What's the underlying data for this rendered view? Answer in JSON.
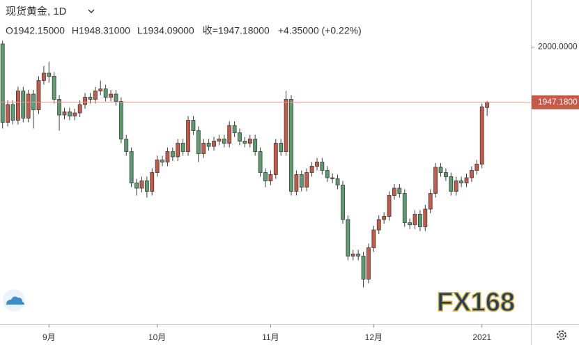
{
  "chart_data": {
    "type": "candlestick",
    "title": "现货黄金, 1D",
    "ohlc_legend": [
      "O1942.15000",
      "H1948.31000",
      "L1934.09000",
      "收=1947.18000",
      "+4.35000 (+0.22%)"
    ],
    "watermark": "FX168",
    "up_color": "#c65a46",
    "down_color": "#5a9e70",
    "ylim": [
      1735,
      2045
    ],
    "yticks": [
      {
        "value": 2000,
        "label": "2000.0000"
      }
    ],
    "last_price": {
      "value": 1947.18,
      "label": "1947.1800"
    },
    "xlim": [
      -0.5,
      102.5
    ],
    "xticks": [
      {
        "value": 9,
        "label": "9月"
      },
      {
        "value": 30,
        "label": "10月"
      },
      {
        "value": 52,
        "label": "11月"
      },
      {
        "value": 72,
        "label": "12月"
      },
      {
        "value": 93,
        "label": "2021"
      }
    ],
    "open": [
      2003,
      1928,
      1945,
      1930,
      1958,
      1932,
      1955,
      1940,
      1968,
      1975,
      1972,
      1950,
      1935,
      1938,
      1934,
      1937,
      1945,
      1952,
      1950,
      1958,
      1960,
      1952,
      1955,
      1948,
      1912,
      1900,
      1870,
      1865,
      1872,
      1862,
      1880,
      1892,
      1890,
      1900,
      1895,
      1908,
      1900,
      1930,
      1920,
      1898,
      1908,
      1905,
      1910,
      1912,
      1908,
      1925,
      1918,
      1910,
      1908,
      1912,
      1900,
      1880,
      1872,
      1878,
      1908,
      1900,
      1950,
      1862,
      1878,
      1866,
      1880,
      1886,
      1890,
      1882,
      1875,
      1874,
      1868,
      1835,
      1800,
      1802,
      1800,
      1778,
      1808,
      1825,
      1835,
      1838,
      1858,
      1865,
      1860,
      1832,
      1830,
      1840,
      1828,
      1845,
      1860,
      1885,
      1880,
      1876,
      1862,
      1872,
      1870,
      1875,
      1882,
      1888,
      1942.15
    ],
    "high": [
      2006,
      1949,
      1949,
      1962,
      1962,
      1959,
      1959,
      1972,
      1982,
      1986,
      1976,
      1954,
      1942,
      1942,
      1941,
      1949,
      1956,
      1956,
      1962,
      1968,
      1964,
      1959,
      1959,
      1952,
      1916,
      1904,
      1874,
      1876,
      1876,
      1884,
      1896,
      1896,
      1904,
      1904,
      1912,
      1912,
      1934,
      1934,
      1924,
      1912,
      1912,
      1914,
      1916,
      1916,
      1929,
      1929,
      1922,
      1914,
      1916,
      1916,
      1904,
      1884,
      1882,
      1912,
      1912,
      1958,
      1954,
      1882,
      1882,
      1884,
      1890,
      1894,
      1894,
      1886,
      1879,
      1878,
      1872,
      1839,
      1806,
      1806,
      1804,
      1812,
      1829,
      1839,
      1842,
      1862,
      1869,
      1869,
      1864,
      1836,
      1844,
      1844,
      1849,
      1864,
      1889,
      1889,
      1884,
      1880,
      1876,
      1876,
      1879,
      1886,
      1892,
      1946,
      1948.31
    ],
    "low": [
      1922,
      1924,
      1926,
      1926,
      1928,
      1928,
      1922,
      1936,
      1964,
      1966,
      1946,
      1920,
      1931,
      1930,
      1930,
      1933,
      1941,
      1946,
      1946,
      1954,
      1948,
      1948,
      1944,
      1908,
      1896,
      1866,
      1858,
      1861,
      1856,
      1858,
      1876,
      1886,
      1886,
      1891,
      1891,
      1896,
      1896,
      1916,
      1890,
      1894,
      1901,
      1901,
      1906,
      1904,
      1904,
      1914,
      1906,
      1904,
      1904,
      1896,
      1876,
      1866,
      1868,
      1874,
      1896,
      1896,
      1858,
      1858,
      1862,
      1862,
      1876,
      1882,
      1878,
      1871,
      1870,
      1864,
      1831,
      1796,
      1796,
      1796,
      1770,
      1774,
      1804,
      1821,
      1831,
      1834,
      1854,
      1856,
      1828,
      1826,
      1826,
      1824,
      1824,
      1841,
      1856,
      1876,
      1872,
      1858,
      1858,
      1866,
      1866,
      1871,
      1878,
      1884,
      1934.09
    ],
    "close": [
      1928,
      1945,
      1930,
      1958,
      1932,
      1955,
      1940,
      1968,
      1975,
      1972,
      1950,
      1935,
      1938,
      1934,
      1937,
      1945,
      1952,
      1950,
      1958,
      1960,
      1952,
      1955,
      1948,
      1912,
      1900,
      1870,
      1865,
      1872,
      1862,
      1880,
      1892,
      1890,
      1900,
      1895,
      1908,
      1900,
      1930,
      1920,
      1898,
      1908,
      1905,
      1910,
      1912,
      1908,
      1925,
      1918,
      1910,
      1908,
      1912,
      1900,
      1880,
      1872,
      1878,
      1908,
      1900,
      1950,
      1862,
      1878,
      1866,
      1880,
      1886,
      1890,
      1882,
      1875,
      1874,
      1868,
      1835,
      1800,
      1802,
      1800,
      1778,
      1808,
      1825,
      1835,
      1838,
      1858,
      1865,
      1860,
      1832,
      1830,
      1840,
      1828,
      1845,
      1860,
      1885,
      1880,
      1876,
      1862,
      1872,
      1870,
      1875,
      1882,
      1888,
      1942.83,
      1947.18
    ]
  }
}
